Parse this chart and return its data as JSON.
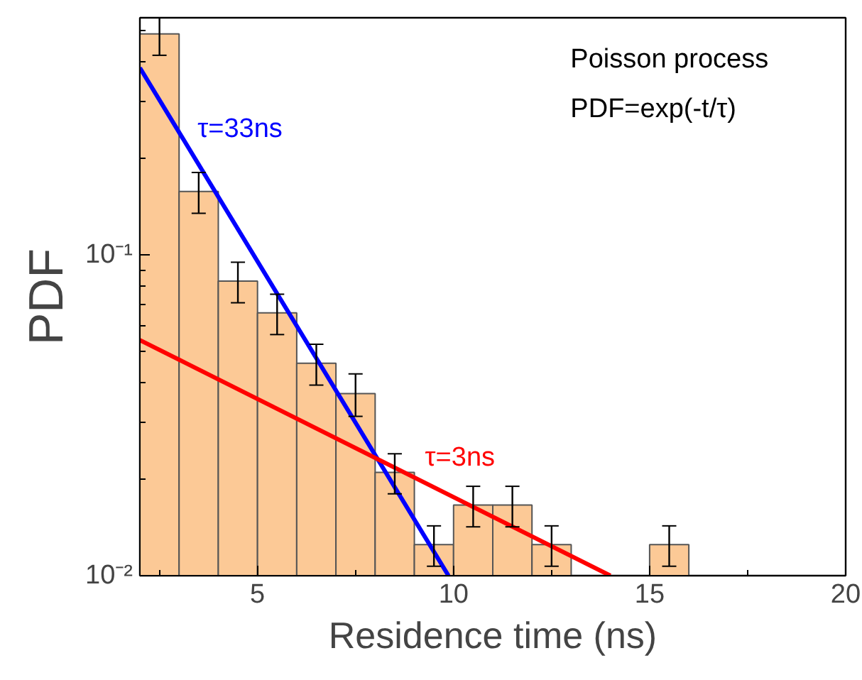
{
  "chart_data": {
    "type": "histogram",
    "xlabel": "Residence time (ns)",
    "ylabel": "PDF",
    "bins": [
      2,
      3,
      4,
      5,
      6,
      7,
      8,
      9,
      10,
      11,
      12,
      13,
      14,
      15,
      16
    ],
    "values": [
      0.49,
      0.158,
      0.083,
      0.066,
      0.046,
      0.037,
      0.021,
      0.0125,
      0.0166,
      0.0166,
      0.0125,
      null,
      null,
      0.0125
    ],
    "color": "#fcc996",
    "errors": [
      [
        0.42,
        0.55
      ],
      0.023,
      0.012,
      0.0095,
      0.0067,
      0.0056,
      0.003,
      0.0018,
      0.0024,
      0.0024,
      0.0018,
      null,
      null,
      0.0018
    ],
    "series": [
      {
        "type": "line",
        "name": "τ=33ns",
        "color": "#0000ff",
        "x": [
          2,
          9.87
        ],
        "values": [
          0.384,
          0.01
        ]
      },
      {
        "type": "line",
        "name": "τ=3ns",
        "color": "#ff0000",
        "x": [
          2,
          14.0
        ],
        "values": [
          0.0543,
          0.01
        ]
      }
    ],
    "annotations": [
      "Poisson process",
      "PDF=exp(-t/τ)"
    ],
    "log": "y",
    "grid": false,
    "xlim": [
      2,
      20
    ],
    "ylim": [
      0.01,
      0.55
    ],
    "xticks": [
      {
        "value": 2.5,
        "label": null
      },
      5,
      {
        "value": 7.5,
        "label": null
      },
      10,
      {
        "value": 12.5,
        "label": null
      },
      15,
      {
        "value": 17.5,
        "label": null
      },
      20
    ],
    "yticks": [
      {
        "value": 0.01,
        "label": "10⁻²"
      },
      {
        "value": 0.02,
        "label": null
      },
      {
        "value": 0.03,
        "label": null
      },
      {
        "value": 0.04,
        "label": null
      },
      {
        "value": 0.05,
        "label": null
      },
      {
        "value": 0.06,
        "label": null
      },
      {
        "value": 0.07,
        "label": null
      },
      {
        "value": 0.08,
        "label": null
      },
      {
        "value": 0.09,
        "label": null
      },
      {
        "value": 0.1,
        "label": "10⁻¹"
      },
      {
        "value": 0.2,
        "label": null
      },
      {
        "value": 0.3,
        "label": null
      },
      {
        "value": 0.4,
        "label": null
      },
      {
        "value": 0.5,
        "label": null
      }
    ]
  }
}
